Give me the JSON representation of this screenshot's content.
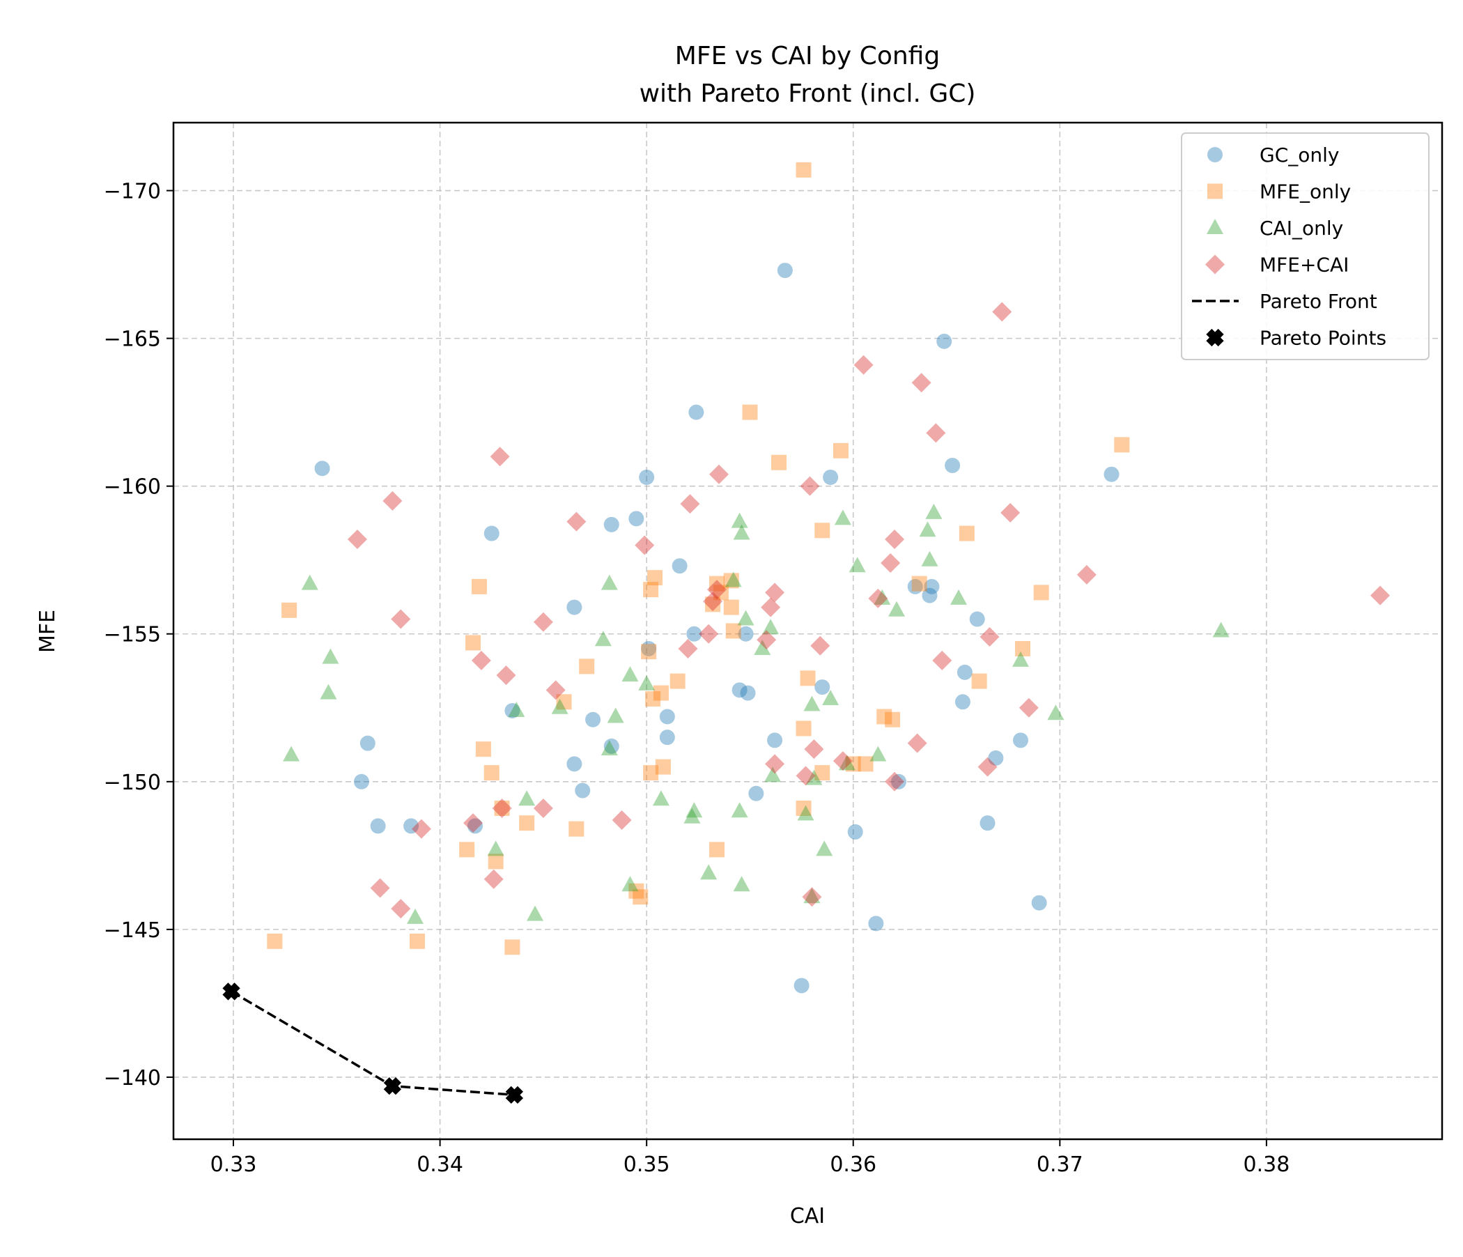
{
  "chart_data": {
    "type": "scatter",
    "title": "MFE vs CAI by Config\nwith Pareto Front (incl. GC)",
    "xlabel": "CAI",
    "ylabel": "MFE",
    "xlim": [
      0.3271,
      0.3885
    ],
    "ylim": [
      -137.9,
      -172.3
    ],
    "y_inverted": true,
    "grid": true,
    "legend_position": "top-right",
    "x_ticks": [
      0.33,
      0.34,
      0.35,
      0.36,
      0.37,
      0.38
    ],
    "x_tick_labels": [
      "0.33",
      "0.34",
      "0.35",
      "0.36",
      "0.37",
      "0.38"
    ],
    "y_ticks": [
      -170,
      -165,
      -160,
      -155,
      -150,
      -145,
      -140
    ],
    "y_tick_labels": [
      "−170",
      "−165",
      "−160",
      "−155",
      "−150",
      "−145",
      "−140"
    ],
    "series": [
      {
        "name": "GC_only",
        "marker": "circle",
        "color": "#1f77b4",
        "points": [
          [
            0.3567,
            -167.3
          ],
          [
            0.3644,
            -164.9
          ],
          [
            0.3524,
            -162.5
          ],
          [
            0.3343,
            -160.6
          ],
          [
            0.35,
            -160.3
          ],
          [
            0.3589,
            -160.3
          ],
          [
            0.3648,
            -160.7
          ],
          [
            0.3725,
            -160.4
          ],
          [
            0.3495,
            -158.9
          ],
          [
            0.3483,
            -158.7
          ],
          [
            0.3425,
            -158.4
          ],
          [
            0.3516,
            -157.3
          ],
          [
            0.363,
            -156.6
          ],
          [
            0.3638,
            -156.6
          ],
          [
            0.3637,
            -156.3
          ],
          [
            0.3465,
            -155.9
          ],
          [
            0.366,
            -155.5
          ],
          [
            0.3523,
            -155.0
          ],
          [
            0.3548,
            -155.0
          ],
          [
            0.3501,
            -154.5
          ],
          [
            0.3654,
            -153.7
          ],
          [
            0.3585,
            -153.2
          ],
          [
            0.3545,
            -153.1
          ],
          [
            0.3549,
            -153.0
          ],
          [
            0.3653,
            -152.7
          ],
          [
            0.3435,
            -152.4
          ],
          [
            0.351,
            -152.2
          ],
          [
            0.3474,
            -152.1
          ],
          [
            0.351,
            -151.5
          ],
          [
            0.3562,
            -151.4
          ],
          [
            0.3681,
            -151.4
          ],
          [
            0.3365,
            -151.3
          ],
          [
            0.3483,
            -151.2
          ],
          [
            0.3669,
            -150.8
          ],
          [
            0.3465,
            -150.6
          ],
          [
            0.3362,
            -150.0
          ],
          [
            0.3622,
            -150.0
          ],
          [
            0.3469,
            -149.7
          ],
          [
            0.3553,
            -149.6
          ],
          [
            0.337,
            -148.5
          ],
          [
            0.3386,
            -148.5
          ],
          [
            0.3417,
            -148.5
          ],
          [
            0.3665,
            -148.6
          ],
          [
            0.3601,
            -148.3
          ],
          [
            0.369,
            -145.9
          ],
          [
            0.3611,
            -145.2
          ],
          [
            0.3575,
            -143.1
          ]
        ]
      },
      {
        "name": "MFE_only",
        "marker": "square",
        "color": "#ff7f0e",
        "points": [
          [
            0.3576,
            -170.7
          ],
          [
            0.355,
            -162.5
          ],
          [
            0.373,
            -161.4
          ],
          [
            0.3594,
            -161.2
          ],
          [
            0.3564,
            -160.8
          ],
          [
            0.3585,
            -158.5
          ],
          [
            0.3655,
            -158.4
          ],
          [
            0.3504,
            -156.9
          ],
          [
            0.3419,
            -156.6
          ],
          [
            0.3502,
            -156.5
          ],
          [
            0.3534,
            -156.7
          ],
          [
            0.3541,
            -156.8
          ],
          [
            0.3536,
            -156.4
          ],
          [
            0.3632,
            -156.7
          ],
          [
            0.3532,
            -156.0
          ],
          [
            0.3541,
            -155.9
          ],
          [
            0.3691,
            -156.4
          ],
          [
            0.3327,
            -155.8
          ],
          [
            0.3542,
            -155.1
          ],
          [
            0.3416,
            -154.7
          ],
          [
            0.3501,
            -154.4
          ],
          [
            0.3682,
            -154.5
          ],
          [
            0.3471,
            -153.9
          ],
          [
            0.3578,
            -153.5
          ],
          [
            0.3515,
            -153.4
          ],
          [
            0.3507,
            -153.0
          ],
          [
            0.3503,
            -152.8
          ],
          [
            0.3661,
            -153.4
          ],
          [
            0.346,
            -152.7
          ],
          [
            0.3615,
            -152.2
          ],
          [
            0.3619,
            -152.1
          ],
          [
            0.3576,
            -151.8
          ],
          [
            0.3421,
            -151.1
          ],
          [
            0.36,
            -150.6
          ],
          [
            0.3606,
            -150.6
          ],
          [
            0.3508,
            -150.5
          ],
          [
            0.3425,
            -150.3
          ],
          [
            0.3502,
            -150.3
          ],
          [
            0.3585,
            -150.3
          ],
          [
            0.343,
            -149.1
          ],
          [
            0.3576,
            -149.1
          ],
          [
            0.3442,
            -148.6
          ],
          [
            0.3466,
            -148.4
          ],
          [
            0.3413,
            -147.7
          ],
          [
            0.3427,
            -147.3
          ],
          [
            0.3534,
            -147.7
          ],
          [
            0.3495,
            -146.3
          ],
          [
            0.3497,
            -146.1
          ],
          [
            0.332,
            -144.6
          ],
          [
            0.3389,
            -144.6
          ],
          [
            0.3435,
            -144.4
          ]
        ]
      },
      {
        "name": "CAI_only",
        "marker": "triangle",
        "color": "#2ca02c",
        "points": [
          [
            0.3595,
            -158.9
          ],
          [
            0.3639,
            -159.1
          ],
          [
            0.3545,
            -158.8
          ],
          [
            0.3546,
            -158.4
          ],
          [
            0.3636,
            -158.5
          ],
          [
            0.3602,
            -157.3
          ],
          [
            0.3637,
            -157.5
          ],
          [
            0.3542,
            -156.8
          ],
          [
            0.3337,
            -156.7
          ],
          [
            0.3482,
            -156.7
          ],
          [
            0.3614,
            -156.2
          ],
          [
            0.3651,
            -156.2
          ],
          [
            0.3621,
            -155.8
          ],
          [
            0.3548,
            -155.5
          ],
          [
            0.356,
            -155.2
          ],
          [
            0.3479,
            -154.8
          ],
          [
            0.3556,
            -154.5
          ],
          [
            0.3347,
            -154.2
          ],
          [
            0.3681,
            -154.1
          ],
          [
            0.3778,
            -155.1
          ],
          [
            0.3492,
            -153.6
          ],
          [
            0.35,
            -153.3
          ],
          [
            0.3346,
            -153.0
          ],
          [
            0.358,
            -152.6
          ],
          [
            0.3589,
            -152.8
          ],
          [
            0.3458,
            -152.5
          ],
          [
            0.3437,
            -152.4
          ],
          [
            0.3485,
            -152.2
          ],
          [
            0.3698,
            -152.3
          ],
          [
            0.3482,
            -151.1
          ],
          [
            0.3612,
            -150.9
          ],
          [
            0.3597,
            -150.6
          ],
          [
            0.3328,
            -150.9
          ],
          [
            0.3561,
            -150.2
          ],
          [
            0.3581,
            -150.1
          ],
          [
            0.3507,
            -149.4
          ],
          [
            0.3442,
            -149.4
          ],
          [
            0.3545,
            -149.0
          ],
          [
            0.3523,
            -149.0
          ],
          [
            0.3522,
            -148.8
          ],
          [
            0.3577,
            -148.9
          ],
          [
            0.3427,
            -147.7
          ],
          [
            0.3586,
            -147.7
          ],
          [
            0.353,
            -146.9
          ],
          [
            0.3492,
            -146.5
          ],
          [
            0.3546,
            -146.5
          ],
          [
            0.358,
            -146.1
          ],
          [
            0.3446,
            -145.5
          ],
          [
            0.3388,
            -145.4
          ]
        ]
      },
      {
        "name": "MFE+CAI",
        "marker": "diamond",
        "color": "#d62728",
        "points": [
          [
            0.3672,
            -165.9
          ],
          [
            0.3605,
            -164.1
          ],
          [
            0.3633,
            -163.5
          ],
          [
            0.364,
            -161.8
          ],
          [
            0.3429,
            -161.0
          ],
          [
            0.3535,
            -160.4
          ],
          [
            0.3579,
            -160.0
          ],
          [
            0.3377,
            -159.5
          ],
          [
            0.3521,
            -159.4
          ],
          [
            0.3676,
            -159.1
          ],
          [
            0.3466,
            -158.8
          ],
          [
            0.336,
            -158.2
          ],
          [
            0.3499,
            -158.0
          ],
          [
            0.362,
            -158.2
          ],
          [
            0.3618,
            -157.4
          ],
          [
            0.3713,
            -157.0
          ],
          [
            0.3534,
            -156.5
          ],
          [
            0.3562,
            -156.4
          ],
          [
            0.3855,
            -156.3
          ],
          [
            0.3612,
            -156.2
          ],
          [
            0.3532,
            -156.1
          ],
          [
            0.356,
            -155.9
          ],
          [
            0.3381,
            -155.5
          ],
          [
            0.345,
            -155.4
          ],
          [
            0.353,
            -155.0
          ],
          [
            0.3666,
            -154.9
          ],
          [
            0.3558,
            -154.8
          ],
          [
            0.3584,
            -154.6
          ],
          [
            0.352,
            -154.5
          ],
          [
            0.3643,
            -154.1
          ],
          [
            0.342,
            -154.1
          ],
          [
            0.3432,
            -153.6
          ],
          [
            0.3456,
            -153.1
          ],
          [
            0.3685,
            -152.5
          ],
          [
            0.3631,
            -151.3
          ],
          [
            0.3581,
            -151.1
          ],
          [
            0.3595,
            -150.7
          ],
          [
            0.3562,
            -150.6
          ],
          [
            0.3665,
            -150.5
          ],
          [
            0.3577,
            -150.2
          ],
          [
            0.362,
            -150.0
          ],
          [
            0.345,
            -149.1
          ],
          [
            0.343,
            -149.1
          ],
          [
            0.3488,
            -148.7
          ],
          [
            0.3416,
            -148.6
          ],
          [
            0.3391,
            -148.4
          ],
          [
            0.3426,
            -146.7
          ],
          [
            0.3371,
            -146.4
          ],
          [
            0.3381,
            -145.7
          ],
          [
            0.358,
            -146.1
          ]
        ]
      }
    ],
    "pareto_front": {
      "name": "Pareto Front",
      "line_style": "dashed",
      "color": "#000000",
      "points": [
        [
          0.3299,
          -142.9
        ],
        [
          0.3377,
          -139.7
        ],
        [
          0.3436,
          -139.4
        ]
      ]
    },
    "pareto_points": {
      "name": "Pareto Points",
      "marker": "x",
      "color": "#000000",
      "points": [
        [
          0.3299,
          -142.9
        ],
        [
          0.3377,
          -139.7
        ],
        [
          0.3436,
          -139.4
        ]
      ]
    }
  }
}
